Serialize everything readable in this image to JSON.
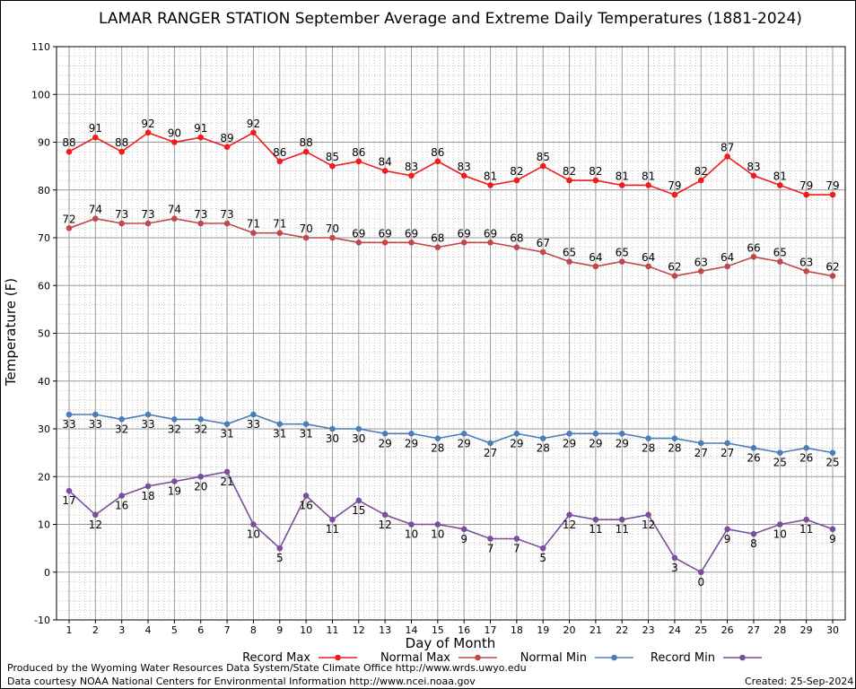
{
  "chart_data": {
    "type": "line",
    "title": "LAMAR RANGER STATION September Average and Extreme Daily Temperatures (1881-2024)",
    "xlabel": "Day of Month",
    "ylabel": "Temperature (F)",
    "x": [
      1,
      2,
      3,
      4,
      5,
      6,
      7,
      8,
      9,
      10,
      11,
      12,
      13,
      14,
      15,
      16,
      17,
      18,
      19,
      20,
      21,
      22,
      23,
      24,
      25,
      26,
      27,
      28,
      29,
      30
    ],
    "xlim": [
      1,
      30
    ],
    "ylim": [
      -10,
      110
    ],
    "yticks": [
      -10,
      0,
      10,
      20,
      30,
      40,
      50,
      60,
      70,
      80,
      90,
      100,
      110
    ],
    "grid": true,
    "legend_position": "bottom",
    "series": [
      {
        "name": "Record Max",
        "color": "#ee1c1c",
        "values": [
          88,
          91,
          88,
          92,
          90,
          91,
          89,
          92,
          86,
          88,
          85,
          86,
          84,
          83,
          86,
          83,
          81,
          82,
          85,
          82,
          82,
          81,
          81,
          79,
          82,
          87,
          83,
          81,
          79,
          79
        ]
      },
      {
        "name": "Normal Max",
        "color": "#c04848",
        "values": [
          72,
          74,
          73,
          73,
          74,
          73,
          73,
          71,
          71,
          70,
          70,
          69,
          69,
          69,
          68,
          69,
          69,
          68,
          67,
          65,
          64,
          65,
          64,
          62,
          63,
          64,
          66,
          65,
          63,
          62
        ]
      },
      {
        "name": "Normal Min",
        "color": "#4a7fb5",
        "values": [
          33,
          33,
          32,
          33,
          32,
          32,
          31,
          33,
          31,
          31,
          30,
          30,
          29,
          29,
          28,
          29,
          27,
          29,
          28,
          29,
          29,
          29,
          28,
          28,
          27,
          27,
          26,
          25,
          26,
          25
        ]
      },
      {
        "name": "Record Min",
        "color": "#7a4e9a",
        "values": [
          17,
          12,
          16,
          18,
          19,
          20,
          21,
          10,
          5,
          16,
          11,
          15,
          12,
          10,
          10,
          9,
          7,
          7,
          5,
          12,
          11,
          11,
          12,
          3,
          0,
          9,
          8,
          10,
          11,
          9
        ]
      }
    ]
  },
  "footer": {
    "produced_by": "Produced by the Wyoming Water Resources Data System/State Climate Office http://www.wrds.uwyo.edu",
    "data_courtesy": "Data courtesy NOAA National Centers for Environmental Information http://www.ncei.noaa.gov",
    "created": "Created:  25-Sep-2024"
  }
}
